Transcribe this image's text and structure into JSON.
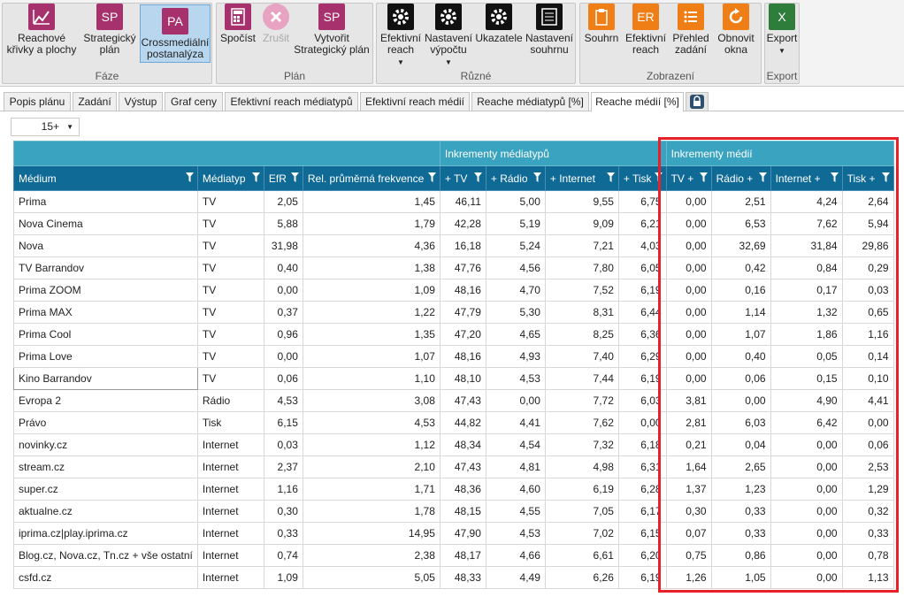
{
  "ribbon": {
    "groups": [
      {
        "label": "Fáze"
      },
      {
        "label": "Plán"
      },
      {
        "label": "Různé"
      },
      {
        "label": "Zobrazení"
      },
      {
        "label": "Export"
      }
    ],
    "buttons": [
      {
        "label": "Reachové\nkřivky a plochy",
        "icon": "chart-line-icon",
        "glyph": ""
      },
      {
        "label": "Strategický\nplán",
        "icon": "sp-icon",
        "glyph": "SP"
      },
      {
        "label": "Crossmediální\npostanalýza",
        "icon": "pa-icon",
        "glyph": "PA"
      },
      {
        "label": "Spočíst",
        "icon": "calculator-icon",
        "glyph": ""
      },
      {
        "label": "Zrušit",
        "icon": "cancel-icon",
        "glyph": ""
      },
      {
        "label": "Vytvořit\nStrategický plán",
        "icon": "sp-icon",
        "glyph": "SP"
      },
      {
        "label": "Efektivní\nreach",
        "icon": "gear-icon",
        "glyph": ""
      },
      {
        "label": "Nastavení\nvýpočtu",
        "icon": "gear-icon",
        "glyph": ""
      },
      {
        "label": "Ukazatele",
        "icon": "gear-icon",
        "glyph": ""
      },
      {
        "label": "Nastavení\nsouhrnu",
        "icon": "summary-settings-icon",
        "glyph": ""
      },
      {
        "label": "Souhrn",
        "icon": "clipboard-icon",
        "glyph": ""
      },
      {
        "label": "Efektivní\nreach",
        "icon": "er-icon",
        "glyph": "ER"
      },
      {
        "label": "Přehled\nzadání",
        "icon": "list-icon",
        "glyph": ""
      },
      {
        "label": "Obnovit\nokna",
        "icon": "refresh-icon",
        "glyph": ""
      },
      {
        "label": "Export",
        "icon": "excel-icon",
        "glyph": "X"
      }
    ]
  },
  "tabs": [
    "Popis plánu",
    "Zadání",
    "Výstup",
    "Graf ceny",
    "Efektivní reach médiatypů",
    "Efektivní reach médií",
    "Reache médiatypů [%]",
    "Reache médií [%]"
  ],
  "active_tab": "Reache médií [%]",
  "zoom": {
    "value": "15+"
  },
  "grid": {
    "bands": {
      "mediatypy": "Inkrementy médiatypů",
      "media": "Inkrementy médií"
    },
    "columns": [
      "Médium",
      "Médiatyp",
      "EfR",
      "Rel. průměrná frekvence",
      "+ TV",
      "+ Rádio",
      "+ Internet",
      "+ Tisk",
      "TV +",
      "Rádio +",
      "Internet +",
      "Tisk +"
    ],
    "rows": [
      [
        "Prima",
        "TV",
        "2,05",
        "1,45",
        "46,11",
        "5,00",
        "9,55",
        "6,75",
        "0,00",
        "2,51",
        "4,24",
        "2,64"
      ],
      [
        "Nova Cinema",
        "TV",
        "5,88",
        "1,79",
        "42,28",
        "5,19",
        "9,09",
        "6,21",
        "0,00",
        "6,53",
        "7,62",
        "5,94"
      ],
      [
        "Nova",
        "TV",
        "31,98",
        "4,36",
        "16,18",
        "5,24",
        "7,21",
        "4,03",
        "0,00",
        "32,69",
        "31,84",
        "29,86"
      ],
      [
        "TV Barrandov",
        "TV",
        "0,40",
        "1,38",
        "47,76",
        "4,56",
        "7,80",
        "6,05",
        "0,00",
        "0,42",
        "0,84",
        "0,29"
      ],
      [
        "Prima ZOOM",
        "TV",
        "0,00",
        "1,09",
        "48,16",
        "4,70",
        "7,52",
        "6,19",
        "0,00",
        "0,16",
        "0,17",
        "0,03"
      ],
      [
        "Prima MAX",
        "TV",
        "0,37",
        "1,22",
        "47,79",
        "5,30",
        "8,31",
        "6,44",
        "0,00",
        "1,14",
        "1,32",
        "0,65"
      ],
      [
        "Prima Cool",
        "TV",
        "0,96",
        "1,35",
        "47,20",
        "4,65",
        "8,25",
        "6,36",
        "0,00",
        "1,07",
        "1,86",
        "1,16"
      ],
      [
        "Prima Love",
        "TV",
        "0,00",
        "1,07",
        "48,16",
        "4,93",
        "7,40",
        "6,29",
        "0,00",
        "0,40",
        "0,05",
        "0,14"
      ],
      [
        "Kino Barrandov",
        "TV",
        "0,06",
        "1,10",
        "48,10",
        "4,53",
        "7,44",
        "6,19",
        "0,00",
        "0,06",
        "0,15",
        "0,10"
      ],
      [
        "Evropa 2",
        "Rádio",
        "4,53",
        "3,08",
        "47,43",
        "0,00",
        "7,72",
        "6,03",
        "3,81",
        "0,00",
        "4,90",
        "4,41"
      ],
      [
        "Právo",
        "Tisk",
        "6,15",
        "4,53",
        "44,82",
        "4,41",
        "7,62",
        "0,00",
        "2,81",
        "6,03",
        "6,42",
        "0,00"
      ],
      [
        "novinky.cz",
        "Internet",
        "0,03",
        "1,12",
        "48,34",
        "4,54",
        "7,32",
        "6,18",
        "0,21",
        "0,04",
        "0,00",
        "0,06"
      ],
      [
        "stream.cz",
        "Internet",
        "2,37",
        "2,10",
        "47,43",
        "4,81",
        "4,98",
        "6,31",
        "1,64",
        "2,65",
        "0,00",
        "2,53"
      ],
      [
        "super.cz",
        "Internet",
        "1,16",
        "1,71",
        "48,36",
        "4,60",
        "6,19",
        "6,28",
        "1,37",
        "1,23",
        "0,00",
        "1,29"
      ],
      [
        "aktualne.cz",
        "Internet",
        "0,30",
        "1,78",
        "48,15",
        "4,55",
        "7,05",
        "6,17",
        "0,30",
        "0,33",
        "0,00",
        "0,32"
      ],
      [
        "iprima.cz|play.iprima.cz",
        "Internet",
        "0,33",
        "14,95",
        "47,90",
        "4,53",
        "7,02",
        "6,15",
        "0,07",
        "0,33",
        "0,00",
        "0,33"
      ],
      [
        "Blog.cz, Nova.cz, Tn.cz + vše ostatní",
        "Internet",
        "0,74",
        "2,38",
        "48,17",
        "4,66",
        "6,61",
        "6,20",
        "0,75",
        "0,86",
        "0,00",
        "0,78"
      ],
      [
        "csfd.cz",
        "Internet",
        "1,09",
        "5,05",
        "48,33",
        "4,49",
        "6,26",
        "6,19",
        "1,26",
        "1,05",
        "0,00",
        "1,13"
      ]
    ]
  },
  "colors": {
    "band_header": "#3aa3bf",
    "column_header": "#0f6a96",
    "highlight_box": "#e8202a"
  }
}
